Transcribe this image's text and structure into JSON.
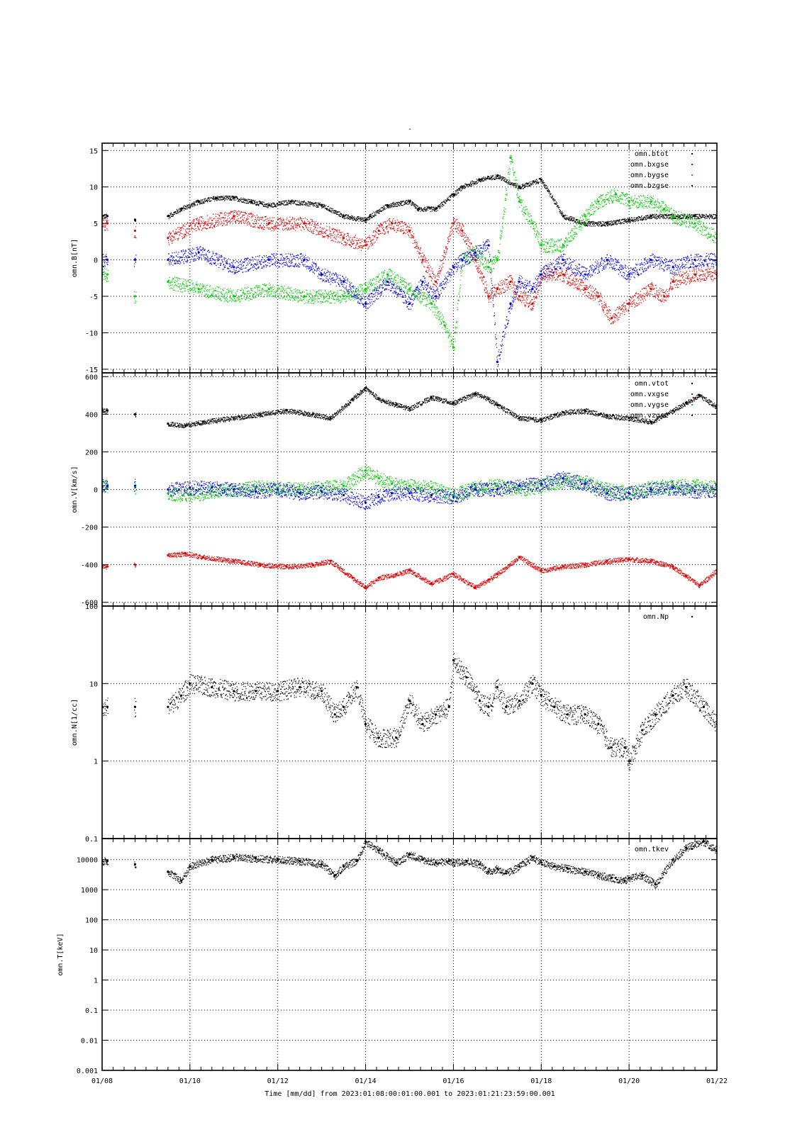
{
  "chart_data": {
    "type": "scatter",
    "title": "-",
    "xlabel": "Time [mm/dd]  from 2023:01:08:00:01:00.001  to  2023:01:21:23:59:00.001",
    "x_ticks": [
      "01/08",
      "01/10",
      "01/12",
      "01/14",
      "01/16",
      "01/18",
      "01/20",
      "01/22"
    ],
    "xlim": [
      0,
      14
    ],
    "grid": true,
    "panels": [
      {
        "ylabel": "omn.B[nT]",
        "scale": "linear",
        "ylim": [
          -15.5,
          16
        ],
        "y_ticks": [
          -15,
          -10,
          -5,
          0,
          5,
          10,
          15
        ],
        "y_tick_labels": [
          "-15",
          "-10",
          "-5",
          "0",
          "5",
          "10",
          "15"
        ],
        "legend_position": "top-right",
        "series": [
          {
            "name": "omn.btot",
            "color": "#000000",
            "mode": "line",
            "x": [
              0.0,
              0.12,
              0.75,
              1.5,
              1.8,
              2.2,
              2.6,
              3.0,
              3.4,
              3.8,
              4.3,
              5.0,
              5.5,
              6.0,
              6.1,
              6.5,
              7.0,
              7.2,
              7.6,
              8.0,
              8.2,
              8.6,
              9.0,
              9.5,
              10.0,
              10.5,
              11.0,
              11.5,
              12.0,
              12.5,
              13.0,
              13.5,
              14.0
            ],
            "y": [
              6,
              6,
              5.5,
              6,
              7,
              8,
              8.5,
              8.5,
              8,
              7.5,
              8,
              7.5,
              6,
              5.5,
              6,
              7.5,
              8,
              7,
              7,
              9,
              10,
              11,
              11.5,
              10,
              11,
              6,
              5,
              5,
              5.5,
              6,
              6,
              6,
              6
            ]
          },
          {
            "name": "omn.bxgse",
            "color": "#dd0000",
            "mode": "scatter",
            "x": [
              0.0,
              0.12,
              0.75,
              1.5,
              2.2,
              3.0,
              3.8,
              4.6,
              5.5,
              6.0,
              6.3,
              6.6,
              7.0,
              7.3,
              7.6,
              8.0,
              8.2,
              8.5,
              8.8,
              9.0,
              9.3,
              9.5,
              9.8,
              10.0,
              10.5,
              11.0,
              11.3,
              11.6,
              12.0,
              12.5,
              12.8,
              13.0,
              13.5,
              14.0
            ],
            "y": [
              5,
              5,
              4,
              3,
              5,
              6,
              5,
              5,
              3,
              2,
              4,
              5,
              4,
              0,
              -3,
              5,
              4,
              0,
              -5,
              -4,
              -3,
              -5,
              -6,
              -2,
              -2,
              -4,
              -5,
              -8,
              -6,
              -4,
              -5,
              -3,
              -2,
              -2
            ]
          },
          {
            "name": "omn.bygse",
            "color": "#00cc00",
            "mode": "scatter",
            "x": [
              0.0,
              0.12,
              0.75,
              1.5,
              2.2,
              3.0,
              3.8,
              4.6,
              5.5,
              6.0,
              6.5,
              7.0,
              7.5,
              7.8,
              8.0,
              8.2,
              8.5,
              8.8,
              9.0,
              9.3,
              9.5,
              9.8,
              10.0,
              10.5,
              11.0,
              11.3,
              11.7,
              12.0,
              12.5,
              12.8,
              13.0,
              13.5,
              14.0
            ],
            "y": [
              -2,
              -2,
              -5,
              -3,
              -4,
              -5,
              -4,
              -5,
              -5,
              -4,
              -2,
              -4,
              -6,
              -9,
              -12,
              0,
              1,
              -1,
              0,
              14,
              8,
              5,
              2,
              2,
              6,
              8,
              9,
              8,
              8,
              7,
              6,
              5,
              3
            ]
          },
          {
            "name": "omn.bzgse",
            "color": "#0000dd",
            "mode": "scatter",
            "x": [
              0.0,
              0.12,
              0.75,
              1.5,
              2.2,
              3.0,
              3.8,
              4.6,
              5.0,
              5.5,
              6.0,
              6.5,
              7.0,
              7.3,
              7.6,
              8.0,
              8.2,
              8.5,
              8.8,
              9.0,
              9.3,
              9.5,
              9.8,
              10.0,
              10.5,
              11.0,
              11.5,
              12.0,
              12.5,
              13.0,
              13.5,
              14.0
            ],
            "y": [
              0,
              0,
              0,
              0,
              1,
              -1,
              0,
              0,
              -2,
              -3,
              -6,
              -3,
              -6,
              -3,
              -5,
              -1,
              0,
              1,
              2,
              -14,
              -6,
              -3,
              -4,
              -2,
              0,
              -2,
              0,
              -2,
              0,
              -1,
              0,
              0
            ]
          }
        ]
      },
      {
        "ylabel": "omn.V[km/s]",
        "scale": "linear",
        "ylim": [
          -620,
          620
        ],
        "y_ticks": [
          -600,
          -400,
          -200,
          0,
          200,
          400,
          600
        ],
        "y_tick_labels": [
          "-600",
          "-400",
          "-200",
          "0",
          "200",
          "400",
          "600"
        ],
        "legend_position": "top-right",
        "series": [
          {
            "name": "omn.vtot",
            "color": "#000000",
            "mode": "line",
            "x": [
              0.0,
              0.12,
              0.75,
              1.5,
              1.9,
              2.3,
              3.0,
              3.6,
              4.2,
              4.8,
              5.2,
              5.7,
              6.0,
              6.3,
              6.7,
              7.0,
              7.5,
              8.0,
              8.5,
              8.8,
              9.0,
              9.5,
              10.0,
              10.5,
              11.0,
              11.5,
              12.0,
              12.5,
              13.0,
              13.3,
              13.6,
              14.0
            ],
            "y": [
              420,
              420,
              400,
              350,
              340,
              360,
              380,
              400,
              420,
              400,
              380,
              480,
              540,
              480,
              450,
              430,
              490,
              460,
              510,
              480,
              450,
              380,
              370,
              410,
              420,
              390,
              380,
              360,
              420,
              460,
              500,
              440
            ]
          },
          {
            "name": "omn.vxgse",
            "color": "#dd0000",
            "mode": "line",
            "x": [
              0.0,
              0.12,
              0.75,
              1.5,
              1.9,
              2.3,
              3.0,
              3.6,
              4.2,
              4.8,
              5.2,
              5.7,
              6.0,
              6.3,
              6.7,
              7.0,
              7.5,
              8.0,
              8.5,
              8.8,
              9.0,
              9.5,
              10.0,
              10.5,
              11.0,
              11.5,
              12.0,
              12.5,
              13.0,
              13.3,
              13.6,
              14.0
            ],
            "y": [
              -410,
              -410,
              -400,
              -350,
              -340,
              -360,
              -380,
              -400,
              -410,
              -400,
              -380,
              -470,
              -520,
              -470,
              -450,
              -430,
              -500,
              -450,
              -520,
              -480,
              -450,
              -360,
              -430,
              -410,
              -400,
              -380,
              -370,
              -380,
              -410,
              -460,
              -510,
              -430
            ]
          },
          {
            "name": "omn.vygse",
            "color": "#00cc00",
            "mode": "scatter",
            "x": [
              0.0,
              0.12,
              0.75,
              1.5,
              2.0,
              2.5,
              3.0,
              3.5,
              4.0,
              4.5,
              5.0,
              5.5,
              6.0,
              6.3,
              6.6,
              7.0,
              7.5,
              8.0,
              8.5,
              9.0,
              9.5,
              10.0,
              10.5,
              11.0,
              11.5,
              12.0,
              12.5,
              13.0,
              13.5,
              14.0
            ],
            "y": [
              10,
              10,
              10,
              -20,
              -30,
              -10,
              0,
              10,
              10,
              0,
              10,
              20,
              100,
              60,
              30,
              20,
              10,
              -30,
              10,
              20,
              0,
              20,
              40,
              40,
              0,
              -20,
              10,
              20,
              20,
              10
            ]
          },
          {
            "name": "omn.vzgse",
            "color": "#0000dd",
            "mode": "scatter",
            "x": [
              0.0,
              0.12,
              0.75,
              1.5,
              2.0,
              2.5,
              3.0,
              3.5,
              4.0,
              4.5,
              5.0,
              5.5,
              6.0,
              6.3,
              6.6,
              7.0,
              7.5,
              8.0,
              8.5,
              9.0,
              9.5,
              10.0,
              10.5,
              11.0,
              11.5,
              12.0,
              12.5,
              13.0,
              13.5,
              14.0
            ],
            "y": [
              20,
              20,
              20,
              0,
              10,
              10,
              0,
              -10,
              0,
              -20,
              -10,
              -30,
              -70,
              -40,
              -20,
              -20,
              -30,
              -40,
              0,
              0,
              20,
              30,
              60,
              30,
              -20,
              -20,
              0,
              10,
              -10,
              0
            ]
          }
        ]
      },
      {
        "ylabel": "omn.N[1/cc]",
        "scale": "log",
        "ylim": [
          0.1,
          100
        ],
        "y_ticks": [
          0.1,
          1,
          10,
          100
        ],
        "y_tick_labels": [
          "0.1",
          "1",
          "10",
          "100"
        ],
        "legend_position": "top-right",
        "series": [
          {
            "name": "omn.Np",
            "color": "#000000",
            "mode": "scatter",
            "x": [
              0.0,
              0.12,
              0.75,
              1.5,
              1.8,
              2.0,
              2.5,
              3.0,
              3.5,
              4.0,
              4.5,
              5.0,
              5.3,
              5.5,
              5.8,
              6.0,
              6.3,
              6.7,
              7.0,
              7.3,
              7.6,
              7.9,
              8.0,
              8.3,
              8.6,
              8.8,
              9.0,
              9.2,
              9.5,
              9.8,
              10.0,
              10.3,
              10.6,
              11.0,
              11.3,
              11.6,
              11.9,
              12.0,
              12.3,
              12.6,
              13.0,
              13.3,
              13.7,
              14.0
            ],
            "y": [
              5,
              5,
              5,
              5,
              7,
              10,
              9,
              8,
              8,
              8,
              9,
              8,
              4,
              5,
              9,
              3,
              2,
              2,
              6,
              3,
              4,
              5,
              20,
              12,
              6,
              5,
              9,
              5,
              6,
              10,
              7,
              5,
              4,
              4,
              3,
              1.5,
              1.5,
              1,
              2.5,
              4,
              7,
              9,
              5,
              3
            ]
          }
        ]
      },
      {
        "ylabel": "omn.T[keV]",
        "scale": "log",
        "ylim": [
          0.001,
          50000
        ],
        "y_ticks": [
          0.001,
          0.01,
          0.1,
          1,
          10,
          100,
          1000,
          10000
        ],
        "y_tick_labels": [
          "0.001",
          "0.01",
          "0.1",
          "1",
          "10",
          "100",
          "1000",
          "10000"
        ],
        "legend_position": "top-right",
        "series": [
          {
            "name": "omn.tkev",
            "color": "#000000",
            "mode": "scatter",
            "x": [
              0.0,
              0.12,
              0.75,
              1.5,
              1.8,
              2.0,
              2.5,
              3.0,
              3.5,
              4.0,
              4.5,
              5.0,
              5.3,
              5.5,
              5.8,
              6.0,
              6.3,
              6.7,
              7.0,
              7.3,
              7.6,
              7.9,
              8.0,
              8.3,
              8.6,
              8.8,
              9.0,
              9.2,
              9.5,
              9.8,
              10.0,
              10.3,
              10.6,
              11.0,
              11.3,
              11.6,
              11.9,
              12.0,
              12.3,
              12.6,
              13.0,
              13.3,
              13.7,
              14.0
            ],
            "y": [
              9000,
              9000,
              7000,
              4000,
              2000,
              6000,
              10000,
              12000,
              11000,
              10000,
              9000,
              7000,
              3000,
              6000,
              9000,
              40000,
              20000,
              8000,
              15000,
              10000,
              8000,
              9000,
              8000,
              9000,
              7000,
              4000,
              5000,
              3500,
              6000,
              12000,
              8000,
              6000,
              5000,
              4000,
              3000,
              2500,
              2000,
              2500,
              3000,
              1500,
              10000,
              25000,
              40000,
              20000
            ]
          }
        ]
      }
    ]
  }
}
